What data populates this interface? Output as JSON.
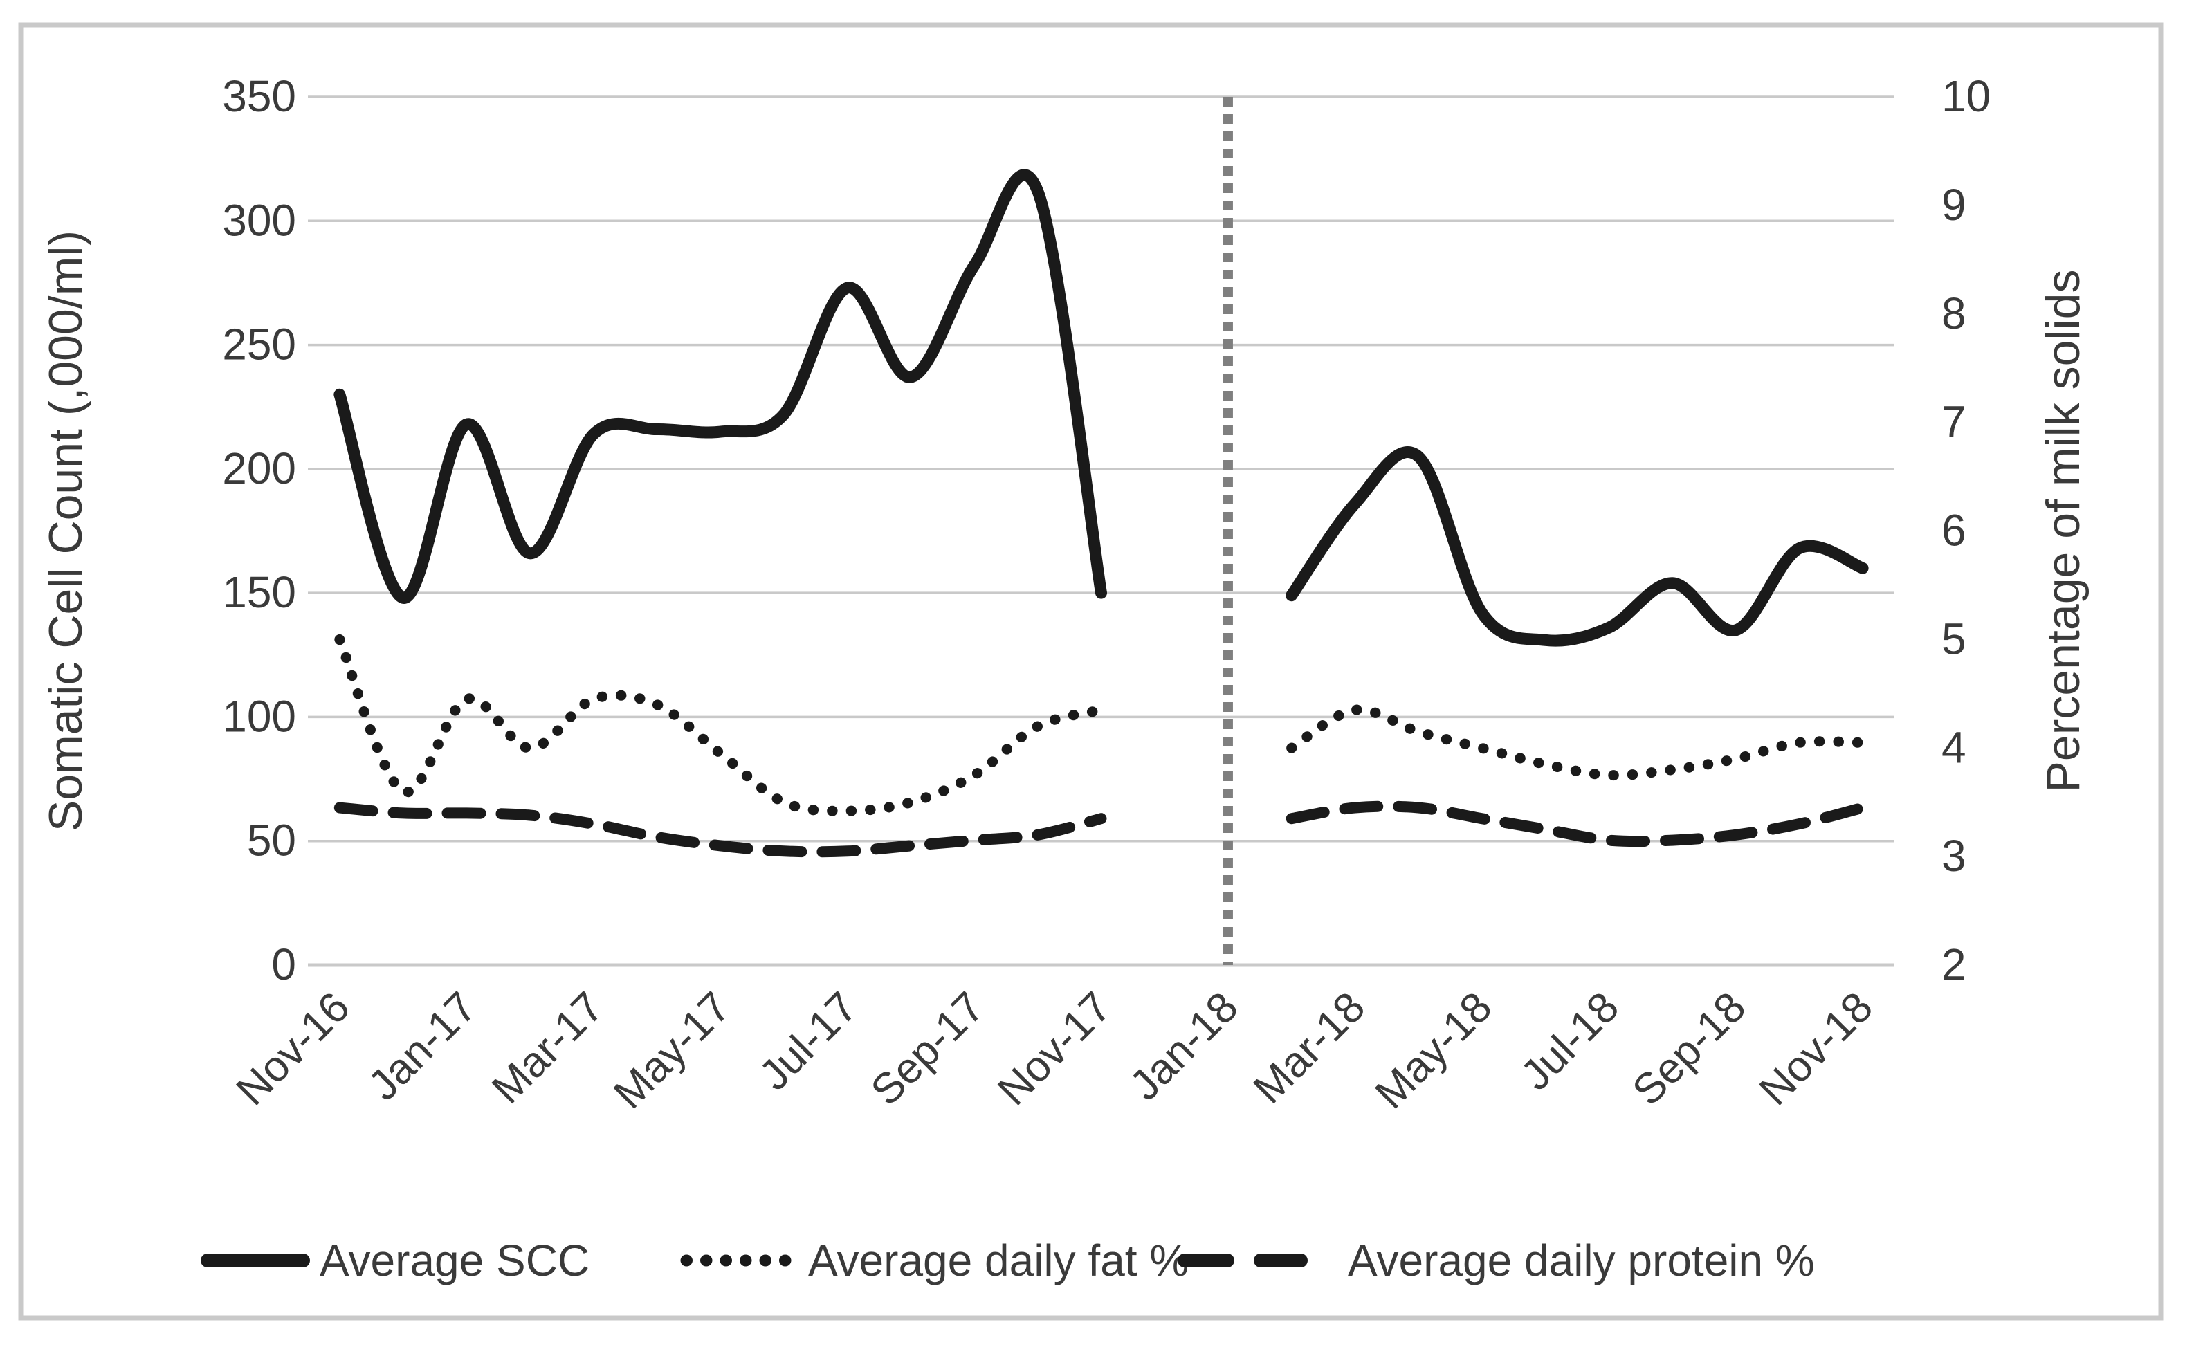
{
  "figure": {
    "background": "#ffffff",
    "border_color": "#c9c9c9"
  },
  "chart_data": {
    "type": "line",
    "title": "",
    "xlabel": "",
    "ylabel_left": "Somatic Cell Count (,000/ml)",
    "ylabel_right": "Percentage of milk solids",
    "ylim_left": [
      0,
      350
    ],
    "ylim_right": [
      2,
      10
    ],
    "yticks_left": [
      350,
      300,
      250,
      200,
      150,
      100,
      50,
      0
    ],
    "yticks_right": [
      10,
      9,
      8,
      7,
      6,
      5,
      4,
      3,
      2
    ],
    "grid": "horizontal",
    "legend_position": "bottom",
    "categories": [
      "Nov-16",
      "Dec-16",
      "Jan-17",
      "Feb-17",
      "Mar-17",
      "Apr-17",
      "May-17",
      "Jun-17",
      "Jul-17",
      "Aug-17",
      "Sep-17",
      "Oct-17",
      "Nov-17",
      "Dec-17",
      "Jan-18",
      "Feb-18",
      "Mar-18",
      "Apr-18",
      "May-18",
      "Jun-18",
      "Jul-18",
      "Aug-18",
      "Sep-18",
      "Oct-18",
      "Nov-18"
    ],
    "x_tick_labels": [
      "Nov-16",
      "Jan-17",
      "Mar-17",
      "May-17",
      "Jul-17",
      "Sep-17",
      "Nov-17",
      "Jan-18",
      "Mar-18",
      "May-18",
      "Jul-18",
      "Sep-18",
      "Nov-18"
    ],
    "separator": {
      "at_category": "Jan-18",
      "style": "dashed-vertical",
      "color": "#7f7f7f"
    },
    "series": [
      {
        "name": "Average SCC",
        "axis": "left",
        "style": "solid",
        "color": "#1a1a1a",
        "values": [
          230,
          148,
          218,
          166,
          214,
          216,
          215,
          222,
          273,
          237,
          282,
          312,
          150,
          null,
          null,
          149,
          186,
          205,
          142,
          131,
          136,
          154,
          135,
          168,
          160
        ]
      },
      {
        "name": "Average daily fat %",
        "axis": "right",
        "style": "dotted",
        "color": "#1a1a1a",
        "values": [
          5.0,
          3.6,
          4.45,
          4.0,
          4.45,
          4.4,
          3.95,
          3.5,
          3.42,
          3.5,
          3.75,
          4.2,
          4.35,
          null,
          null,
          4.0,
          4.35,
          4.15,
          4.0,
          3.85,
          3.75,
          3.8,
          3.9,
          4.05,
          4.05
        ]
      },
      {
        "name": "Average daily protein %",
        "axis": "right",
        "style": "dashed",
        "color": "#1a1a1a",
        "values": [
          3.45,
          3.4,
          3.4,
          3.38,
          3.3,
          3.18,
          3.1,
          3.05,
          3.05,
          3.1,
          3.15,
          3.2,
          3.35,
          null,
          null,
          3.35,
          3.45,
          3.45,
          3.35,
          3.25,
          3.15,
          3.15,
          3.2,
          3.3,
          3.45
        ]
      }
    ],
    "colors": {
      "line": "#1a1a1a",
      "gridline": "#c9c9c9",
      "axis_text": "#3a3a3a",
      "separator": "#7f7f7f"
    }
  }
}
